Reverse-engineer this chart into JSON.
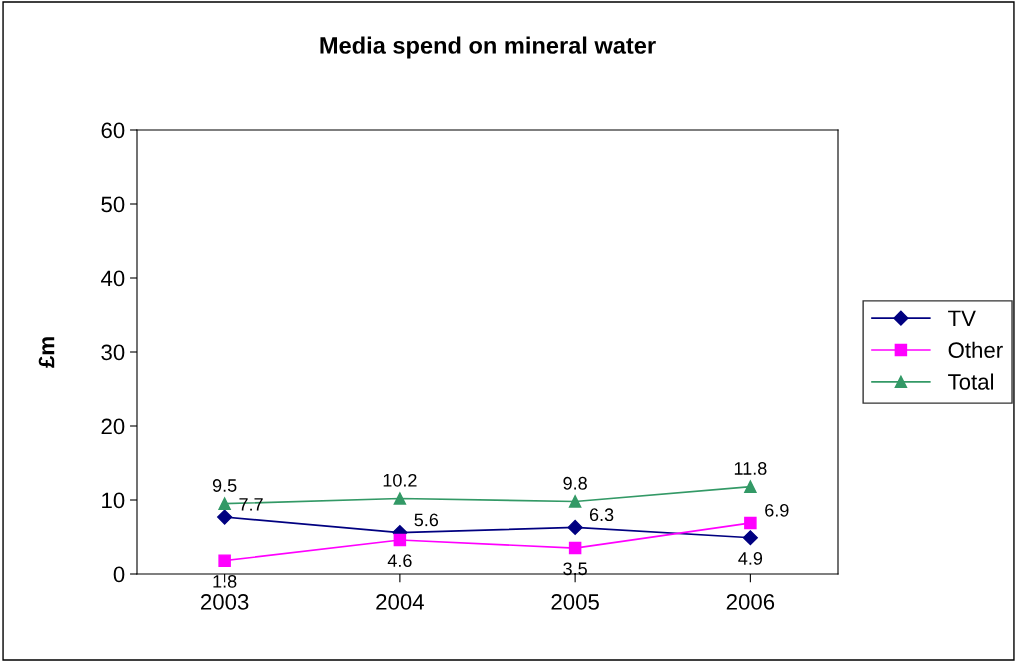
{
  "chart_data": {
    "type": "line",
    "title": "Media spend on mineral water",
    "ylabel": "£m",
    "categories": [
      "2003",
      "2004",
      "2005",
      "2006"
    ],
    "series": [
      {
        "name": "TV",
        "color": "#000080",
        "marker": "diamond",
        "values": [
          7.7,
          5.6,
          6.3,
          4.9
        ]
      },
      {
        "name": "Other",
        "color": "#ff00ff",
        "marker": "square",
        "values": [
          1.8,
          4.6,
          3.5,
          6.9
        ]
      },
      {
        "name": "Total",
        "color": "#339966",
        "marker": "triangle",
        "values": [
          9.5,
          10.2,
          9.8,
          11.8
        ]
      }
    ],
    "ylim": [
      0,
      60
    ],
    "yticks": [
      0,
      10,
      20,
      30,
      40,
      50,
      60
    ],
    "data_labels": true,
    "legend": "right",
    "grid": false,
    "line_style": "solid"
  }
}
